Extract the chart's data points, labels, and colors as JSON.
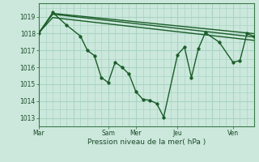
{
  "title": "",
  "xlabel": "Pression niveau de la mer( hPa )",
  "ylabel": "",
  "bg_color": "#cce8dc",
  "grid_color": "#a8d4c4",
  "line_color": "#1a5c28",
  "ylim": [
    1012.5,
    1019.8
  ],
  "xlim": [
    0,
    31
  ],
  "yticks": [
    1013,
    1014,
    1015,
    1016,
    1017,
    1018,
    1019
  ],
  "xtick_positions": [
    0,
    10,
    14,
    20,
    28
  ],
  "xtick_labels": [
    "Mar",
    "Sam",
    "Mer",
    "Jeu",
    "Ven"
  ],
  "lines": [
    {
      "x": [
        0,
        2,
        4,
        6,
        7,
        8,
        9,
        10,
        11,
        12,
        13,
        14,
        15,
        16,
        17,
        18,
        20,
        21,
        22,
        23,
        24,
        26,
        28,
        29,
        30,
        31
      ],
      "y": [
        1018.0,
        1019.25,
        1018.5,
        1017.85,
        1017.0,
        1016.7,
        1015.4,
        1015.1,
        1016.3,
        1016.0,
        1015.6,
        1014.55,
        1014.1,
        1014.05,
        1013.85,
        1013.05,
        1016.75,
        1017.2,
        1015.4,
        1017.1,
        1018.05,
        1017.5,
        1016.3,
        1016.4,
        1018.0,
        1017.85
      ]
    },
    {
      "x": [
        0,
        2,
        31
      ],
      "y": [
        1018.05,
        1019.2,
        1018.0
      ]
    },
    {
      "x": [
        0,
        2,
        31
      ],
      "y": [
        1018.05,
        1019.15,
        1017.8
      ]
    },
    {
      "x": [
        0,
        2,
        31
      ],
      "y": [
        1018.05,
        1018.95,
        1017.6
      ]
    }
  ],
  "vline_positions": [
    0,
    5,
    10,
    14,
    20,
    25,
    28
  ],
  "hgrid_minor": true,
  "marker_size": 2.5,
  "line_width": 1.0
}
